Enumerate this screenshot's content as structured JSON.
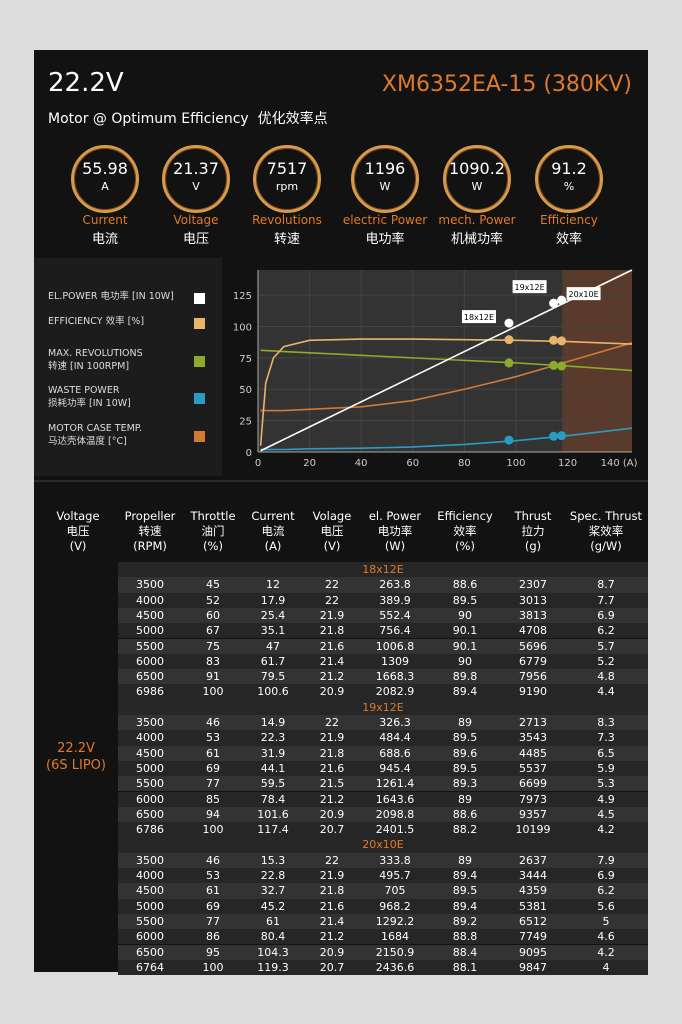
{
  "header": {
    "voltage": "22.2V",
    "model": "XM6352EA-15 (380KV)",
    "subtitle": "Motor @ Optimum Efficiency  优化效率点"
  },
  "gauges": [
    {
      "value": "55.98",
      "unit": "A",
      "label": "Current",
      "label_cn": "电流"
    },
    {
      "value": "21.37",
      "unit": "V",
      "label": "Voltage",
      "label_cn": "电压"
    },
    {
      "value": "7517",
      "unit": "rpm",
      "label": "Revolutions",
      "label_cn": "转速"
    },
    {
      "value": "1196",
      "unit": "W",
      "label": "electric Power",
      "label_cn": "电功率"
    },
    {
      "value": "1090.2",
      "unit": "W",
      "label": "mech. Power",
      "label_cn": "机械功率"
    },
    {
      "value": "91.2",
      "unit": "%",
      "label": "Efficiency",
      "label_cn": "效率"
    }
  ],
  "chart_data": {
    "type": "line",
    "x": [
      1,
      3,
      6,
      10,
      20,
      40,
      60,
      80,
      100,
      120,
      145
    ],
    "series": [
      {
        "name": "EL.POWER 电功率 [IN 10W]",
        "color": "#ffffff",
        "values": [
          1,
          3,
          6,
          10,
          20,
          40,
          60,
          80,
          100,
          120,
          145
        ],
        "points": [
          102.7,
          118.6,
          121
        ]
      },
      {
        "name": "EFFICIENCY 效率 [%]",
        "color": "#e8b468",
        "values": [
          5,
          55,
          75,
          84,
          89,
          90,
          90,
          89.5,
          89,
          88,
          86
        ],
        "points": [
          89.5,
          89,
          88.5
        ]
      },
      {
        "name": "MAX. REVOLUTIONS\n转速 [IN 100RPM]",
        "color": "#8cab2c",
        "values": [
          81,
          80.8,
          80.5,
          80,
          79,
          77,
          75,
          73,
          71,
          68.5,
          65
        ],
        "points": [
          71,
          69,
          68.5
        ]
      },
      {
        "name": "WASTE POWER\n损耗功率 [IN 10W]",
        "color": "#2a9cc4",
        "values": [
          2,
          2,
          2,
          2,
          2.5,
          3,
          4,
          6,
          9,
          13,
          19
        ],
        "points": [
          9.5,
          12.5,
          13
        ]
      },
      {
        "name": "MOTOR CASE TEMP.\n马达壳体温度 [°C]",
        "color": "#d07a34",
        "values": [
          33,
          33,
          33,
          33,
          34,
          36,
          41,
          50,
          60,
          72,
          87
        ]
      }
    ],
    "points_x": [
      97.3,
      114.6,
      117.7
    ],
    "point_labels": [
      "18x12E",
      "19x12E",
      "20x10E"
    ],
    "highlight_xlim": [
      118,
      145
    ],
    "xlim": [
      0,
      145
    ],
    "xticks": [
      0,
      20,
      40,
      60,
      80,
      100,
      120,
      {
        "value": 140,
        "label": "140 (A)"
      }
    ],
    "ylim": [
      0,
      145
    ],
    "yticks": [
      0,
      25,
      50,
      75,
      100,
      125
    ],
    "grid": true
  },
  "table": {
    "columns": [
      "Voltage\n电压\n(V)",
      "Propeller\n转速\n(RPM)",
      "Throttle\n油门\n(%)",
      "Current\n电流\n(A)",
      "Volage\n电压\n(V)",
      "el. Power\n电功率\n(W)",
      "Efficiency\n效率\n(%)",
      "Thrust\n拉力\n(g)",
      "Spec. Thrust\n桨效率\n(g/W)"
    ],
    "voltage": "22.2V\n(6S LIPO)",
    "groups": [
      {
        "title": "18x12E",
        "rows": [
          [
            "3500",
            "45",
            "12",
            "22",
            "263.8",
            "88.6",
            "2307",
            "8.7"
          ],
          [
            "4000",
            "52",
            "17.9",
            "22",
            "389.9",
            "89.5",
            "3013",
            "7.7"
          ],
          [
            "4500",
            "60",
            "25.4",
            "21.9",
            "552.4",
            "90",
            "3813",
            "6.9"
          ],
          [
            "5000",
            "67",
            "35.1",
            "21.8",
            "756.4",
            "90.1",
            "4708",
            "6.2"
          ],
          [
            "5500",
            "75",
            "47",
            "21.6",
            "1006.8",
            "90.1",
            "5696",
            "5.7"
          ],
          [
            "6000",
            "83",
            "61.7",
            "21.4",
            "1309",
            "90",
            "6779",
            "5.2"
          ],
          [
            "6500",
            "91",
            "79.5",
            "21.2",
            "1668.3",
            "89.8",
            "7956",
            "4.8"
          ],
          [
            "6986",
            "100",
            "100.6",
            "20.9",
            "2082.9",
            "89.4",
            "9190",
            "4.4"
          ]
        ]
      },
      {
        "title": "19x12E",
        "rows": [
          [
            "3500",
            "46",
            "14.9",
            "22",
            "326.3",
            "89",
            "2713",
            "8.3"
          ],
          [
            "4000",
            "53",
            "22.3",
            "21.9",
            "484.4",
            "89.5",
            "3543",
            "7.3"
          ],
          [
            "4500",
            "61",
            "31.9",
            "21.8",
            "688.6",
            "89.6",
            "4485",
            "6.5"
          ],
          [
            "5000",
            "69",
            "44.1",
            "21.6",
            "945.4",
            "89.5",
            "5537",
            "5.9"
          ],
          [
            "5500",
            "77",
            "59.5",
            "21.5",
            "1261.4",
            "89.3",
            "6699",
            "5.3"
          ],
          [
            "6000",
            "85",
            "78.4",
            "21.2",
            "1643.6",
            "89",
            "7973",
            "4.9"
          ],
          [
            "6500",
            "94",
            "101.6",
            "20.9",
            "2098.8",
            "88.6",
            "9357",
            "4.5"
          ],
          [
            "6786",
            "100",
            "117.4",
            "20.7",
            "2401.5",
            "88.2",
            "10199",
            "4.2"
          ]
        ]
      },
      {
        "title": "20x10E",
        "rows": [
          [
            "3500",
            "46",
            "15.3",
            "22",
            "333.8",
            "89",
            "2637",
            "7.9"
          ],
          [
            "4000",
            "53",
            "22.8",
            "21.9",
            "495.7",
            "89.4",
            "3444",
            "6.9"
          ],
          [
            "4500",
            "61",
            "32.7",
            "21.8",
            "705",
            "89.5",
            "4359",
            "6.2"
          ],
          [
            "5000",
            "69",
            "45.2",
            "21.6",
            "968.2",
            "89.4",
            "5381",
            "5.6"
          ],
          [
            "5500",
            "77",
            "61",
            "21.4",
            "1292.2",
            "89.2",
            "6512",
            "5"
          ],
          [
            "6000",
            "86",
            "80.4",
            "21.2",
            "1684",
            "88.8",
            "7749",
            "4.6"
          ],
          [
            "6500",
            "95",
            "104.3",
            "20.9",
            "2150.9",
            "88.4",
            "9095",
            "4.2"
          ],
          [
            "6764",
            "100",
            "119.3",
            "20.7",
            "2436.6",
            "88.1",
            "9847",
            "4"
          ]
        ]
      }
    ]
  }
}
